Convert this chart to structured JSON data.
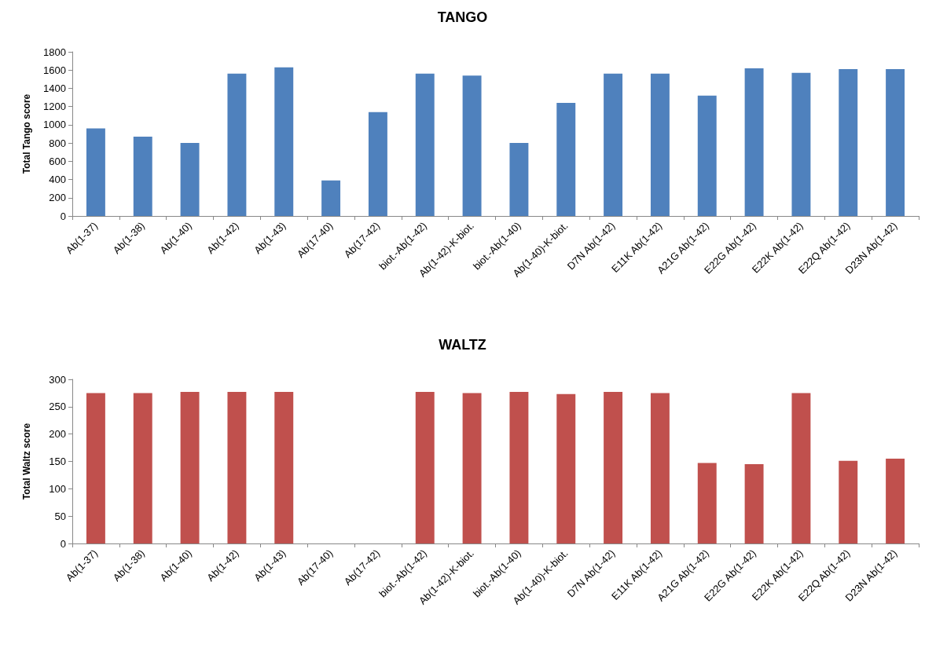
{
  "chart_data": [
    {
      "type": "bar",
      "title": "TANGO",
      "ylabel": "Total Tango score",
      "categories": [
        "Ab(1-37)",
        "Ab(1-38)",
        "Ab(1-40)",
        "Ab(1-42)",
        "Ab(1-43)",
        "Ab(17-40)",
        "Ab(17-42)",
        "biot.-Ab(1-42)",
        "Ab(1-42)-K-biot.",
        "biot.-Ab(1-40)",
        "Ab(1-40)-K-biot.",
        "D7N Ab(1-42)",
        "E11K Ab(1-42)",
        "A21G Ab(1-42)",
        "E22G Ab(1-42)",
        "E22K Ab(1-42)",
        "E22Q Ab(1-42)",
        "D23N Ab(1-42)"
      ],
      "values": [
        960,
        870,
        800,
        1560,
        1630,
        390,
        1140,
        1560,
        1540,
        800,
        1240,
        1560,
        1560,
        1320,
        1620,
        1570,
        1610,
        1610
      ],
      "color": "#4f81bd",
      "ylim": [
        0,
        1800
      ],
      "yticks": [
        0,
        200,
        400,
        600,
        800,
        1000,
        1200,
        1400,
        1600,
        1800
      ],
      "grid": false
    },
    {
      "type": "bar",
      "title": "WALTZ",
      "ylabel": "Total Waltz score",
      "categories": [
        "Ab(1-37)",
        "Ab(1-38)",
        "Ab(1-40)",
        "Ab(1-42)",
        "Ab(1-43)",
        "Ab(17-40)",
        "Ab(17-42)",
        "biot.-Ab(1-42)",
        "Ab(1-42)-K-biot.",
        "biot.-Ab(1-40)",
        "Ab(1-40)-K-biot.",
        "D7N Ab(1-42)",
        "E11K Ab(1-42)",
        "A21G Ab(1-42)",
        "E22G Ab(1-42)",
        "E22K Ab(1-42)",
        "E22Q Ab(1-42)",
        "D23N Ab(1-42)"
      ],
      "values": [
        275,
        275,
        277,
        277,
        277,
        0,
        0,
        277,
        275,
        277,
        273,
        277,
        275,
        147,
        145,
        275,
        151,
        155
      ],
      "color": "#c0504d",
      "ylim": [
        0,
        300
      ],
      "yticks": [
        0,
        50,
        100,
        150,
        200,
        250,
        300
      ],
      "grid": false
    }
  ]
}
